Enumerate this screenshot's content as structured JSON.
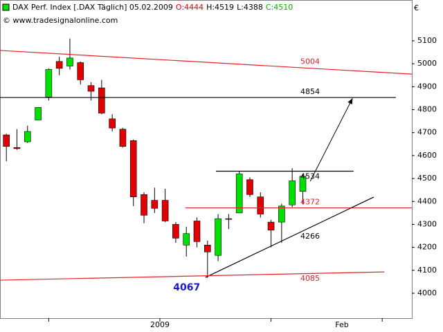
{
  "chart_data": {
    "type": "candlestick",
    "title": "DAX Perf. Index [.DAX  Täglich] 05.02.2009",
    "header_values": [
      {
        "text": "O:4444",
        "color": "#e00000"
      },
      {
        "text": "H:4519",
        "color": "#000000"
      },
      {
        "text": "L:4388",
        "color": "#000000"
      },
      {
        "text": "C:4510",
        "color": "#00b000"
      }
    ],
    "watermark": "© www.tradesignalonline.com",
    "currency": "€",
    "up_color": "#00e000",
    "down_color": "#e00000",
    "open": [
      4690,
      4635,
      4660,
      4755,
      4855,
      5010,
      4990,
      5005,
      4905,
      4895,
      4760,
      4715,
      4665,
      4430,
      4405,
      4405,
      4300,
      4210,
      4315,
      4210,
      4165,
      4325,
      4350,
      4495,
      4420,
      4310,
      4310,
      4385,
      4444
    ],
    "high": [
      4695,
      4715,
      4730,
      4810,
      4980,
      5030,
      5110,
      5010,
      4920,
      4930,
      4780,
      4720,
      4670,
      4440,
      4460,
      4455,
      4310,
      4290,
      4330,
      4230,
      4345,
      4345,
      4530,
      4505,
      4440,
      4320,
      4390,
      4545,
      4519
    ],
    "low": [
      4575,
      4625,
      4655,
      4755,
      4840,
      4950,
      4975,
      4910,
      4840,
      4780,
      4705,
      4635,
      4380,
      4305,
      4350,
      4310,
      4220,
      4160,
      4200,
      4067,
      4140,
      4280,
      4350,
      4420,
      4330,
      4200,
      4220,
      4375,
      4388
    ],
    "close": [
      4640,
      4630,
      4705,
      4810,
      4975,
      4980,
      5025,
      4930,
      4880,
      4785,
      4720,
      4640,
      4420,
      4340,
      4370,
      4315,
      4240,
      4260,
      4225,
      4180,
      4325,
      4325,
      4520,
      4430,
      4345,
      4275,
      4380,
      4490,
      4510
    ],
    "xlim": [
      -0.6,
      38.3
    ],
    "xticks": [
      4,
      14.5,
      25,
      35.5
    ],
    "xlabels": [
      {
        "value": 14.5,
        "label": "2009"
      },
      {
        "value": 31.7,
        "label": "Feb"
      }
    ],
    "ylim": [
      3891.5,
      5277.8
    ],
    "yticks": [
      4000,
      4100,
      4200,
      4300,
      4400,
      4500,
      4600,
      4700,
      4800,
      4900,
      5000,
      5100
    ],
    "lines": [
      {
        "label": "5004",
        "color": "#e0202a",
        "from": [
          -0.6,
          5058
        ],
        "to": [
          38.3,
          4955
        ]
      },
      {
        "label": "4854",
        "color": "#000000",
        "from": [
          -0.6,
          4853
        ],
        "to": [
          36.8,
          4853
        ]
      },
      {
        "label": "4534",
        "color": "#000000",
        "from": [
          19.8,
          4532
        ],
        "to": [
          32.8,
          4532
        ]
      },
      {
        "label": "4372",
        "color": "#e0202a",
        "from": [
          16.9,
          4372
        ],
        "to": [
          38.3,
          4372
        ]
      },
      {
        "label": "4266",
        "color": "#000000",
        "from": [
          18.8,
          4069
        ],
        "to": [
          34.7,
          4419
        ]
      },
      {
        "label": "4085",
        "color": "#e0202a",
        "from": [
          -0.6,
          4057
        ],
        "to": [
          35.7,
          4093
        ]
      }
    ],
    "arrow": {
      "from": [
        28.7,
        4488
      ],
      "to": [
        32.7,
        4850
      ]
    },
    "low_annotation": {
      "label": "4067",
      "color": "#1a1ad0"
    }
  }
}
